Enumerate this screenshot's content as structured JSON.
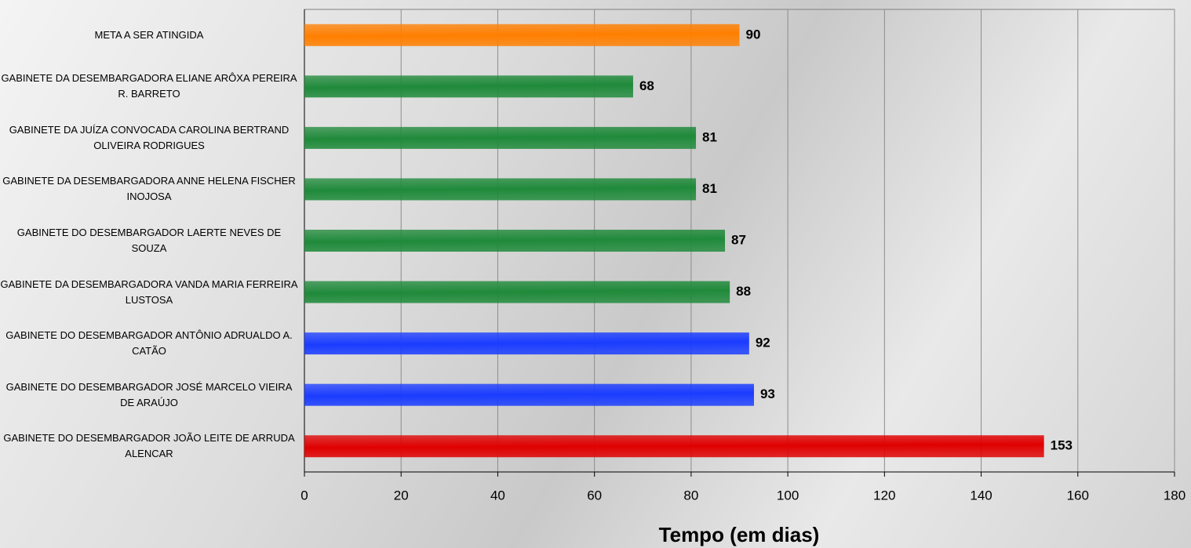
{
  "chart_data": {
    "type": "bar",
    "orientation": "horizontal",
    "x_label": "Tempo (em dias)",
    "categories": [
      "META A SER ATINGIDA",
      "GABINETE DA DESEMBARGADORA ELIANE ARÔXA PEREIRA R. BARRETO",
      "GABINETE DA JUÍZA CONVOCADA CAROLINA BERTRAND OLIVEIRA RODRIGUES",
      "GABINETE DA DESEMBARGADORA ANNE HELENA FISCHER INOJOSA",
      "GABINETE DO DESEMBARGADOR LAERTE NEVES DE SOUZA",
      "GABINETE DA DESEMBARGADORA VANDA MARIA FERREIRA LUSTOSA",
      "GABINETE DO DESEMBARGADOR ANTÔNIO ADRUALDO A. CATÃO",
      "GABINETE DO DESEMBARGADOR JOSÉ MARCELO VIEIRA DE ARAÚJO",
      "GABINETE DO DESEMBARGADOR JOÃO LEITE DE ARRUDA ALENCAR"
    ],
    "values": [
      90,
      68,
      81,
      81,
      87,
      88,
      92,
      93,
      153
    ],
    "colors": [
      "#ff7f00",
      "#1f8a3a",
      "#1f8a3a",
      "#1f8a3a",
      "#1f8a3a",
      "#1f8a3a",
      "#1a3cff",
      "#1a3cff",
      "#e00000"
    ],
    "xlim": [
      0,
      180
    ],
    "xticks": [
      0,
      20,
      40,
      60,
      80,
      100,
      120,
      140,
      160,
      180
    ],
    "grid": true
  }
}
